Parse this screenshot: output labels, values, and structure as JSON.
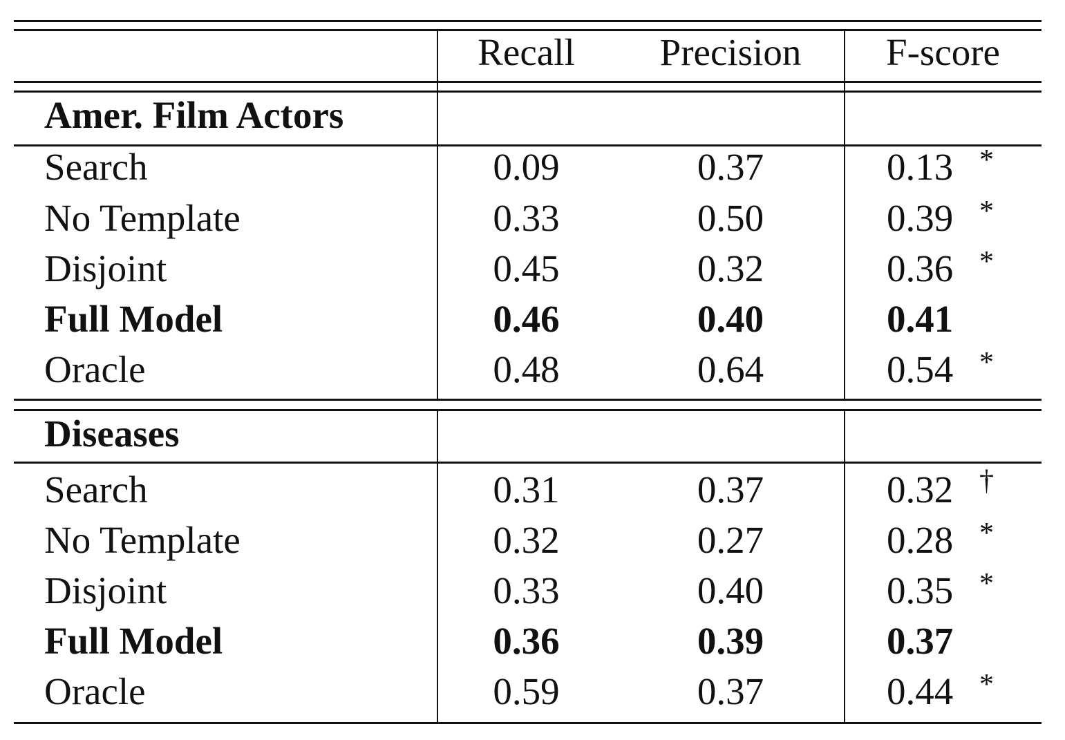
{
  "table": {
    "columns": [
      "",
      "Recall",
      "Precision",
      "F-score"
    ],
    "sections": [
      {
        "title": "Amer. Film Actors",
        "rows": [
          {
            "method": "Search",
            "recall": "0.09",
            "precision": "0.37",
            "fscore": "0.13",
            "marker": "*",
            "bold": false
          },
          {
            "method": "No Template",
            "recall": "0.33",
            "precision": "0.50",
            "fscore": "0.39",
            "marker": "*",
            "bold": false
          },
          {
            "method": "Disjoint",
            "recall": "0.45",
            "precision": "0.32",
            "fscore": "0.36",
            "marker": "*",
            "bold": false
          },
          {
            "method": "Full Model",
            "recall": "0.46",
            "precision": "0.40",
            "fscore": "0.41",
            "marker": "",
            "bold": true
          },
          {
            "method": "Oracle",
            "recall": "0.48",
            "precision": "0.64",
            "fscore": "0.54",
            "marker": "*",
            "bold": false
          }
        ]
      },
      {
        "title": "Diseases",
        "rows": [
          {
            "method": "Search",
            "recall": "0.31",
            "precision": "0.37",
            "fscore": "0.32",
            "marker": "†",
            "bold": false
          },
          {
            "method": "No Template",
            "recall": "0.32",
            "precision": "0.27",
            "fscore": "0.28",
            "marker": "*",
            "bold": false
          },
          {
            "method": "Disjoint",
            "recall": "0.33",
            "precision": "0.40",
            "fscore": "0.35",
            "marker": "*",
            "bold": false
          },
          {
            "method": "Full Model",
            "recall": "0.36",
            "precision": "0.39",
            "fscore": "0.37",
            "marker": "",
            "bold": true
          },
          {
            "method": "Oracle",
            "recall": "0.59",
            "precision": "0.37",
            "fscore": "0.44",
            "marker": "*",
            "bold": false
          }
        ]
      }
    ]
  }
}
